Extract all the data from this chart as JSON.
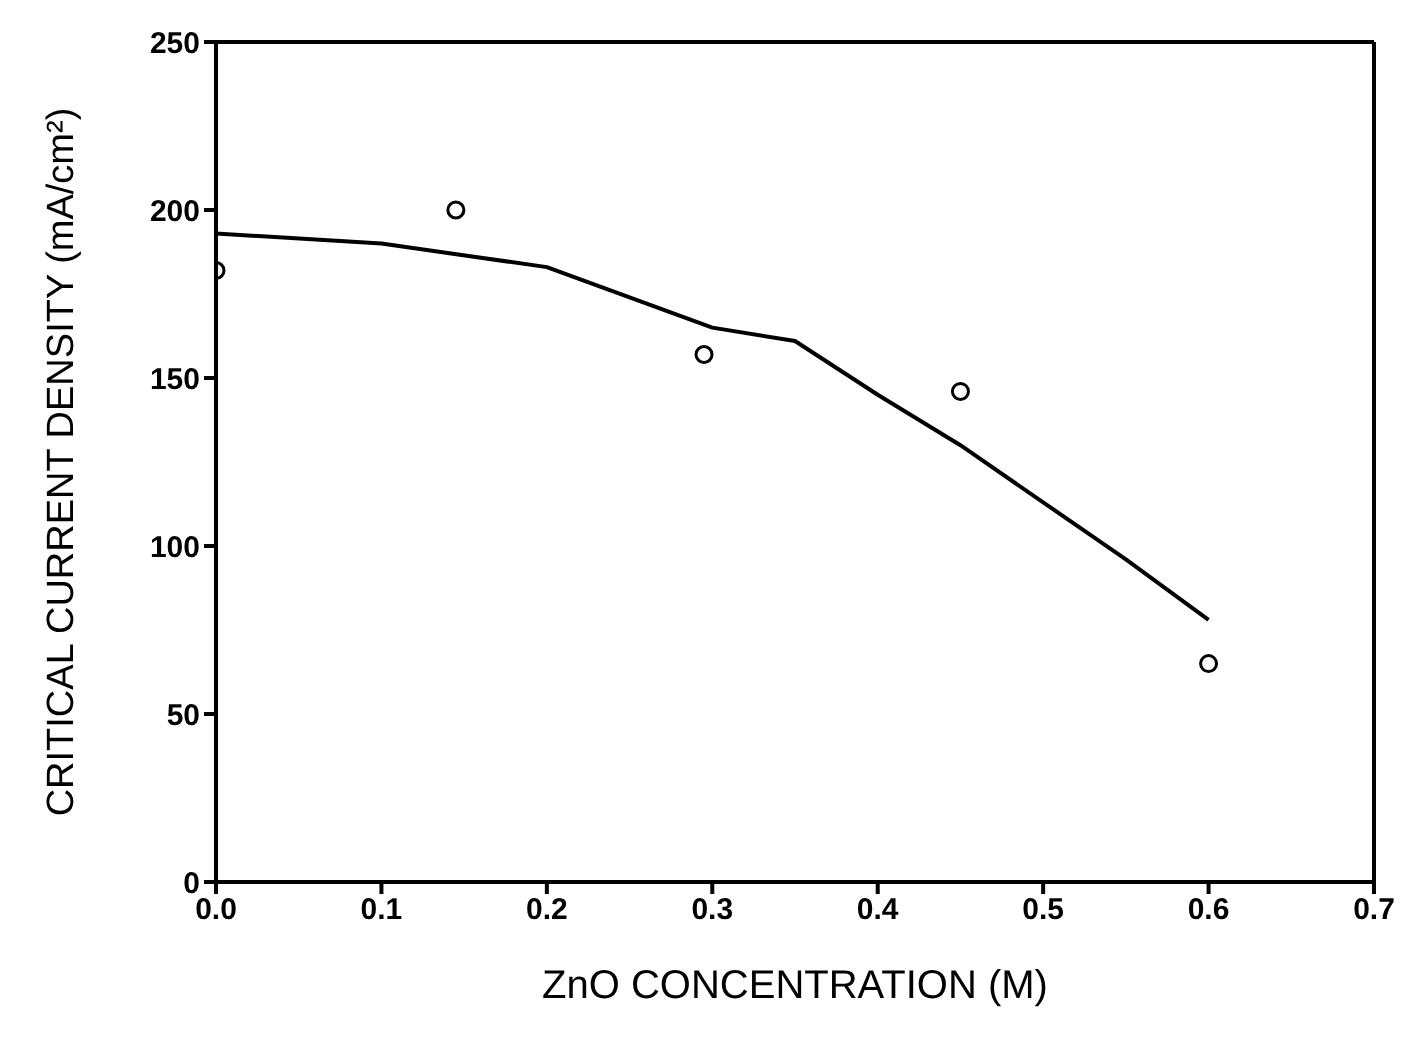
{
  "chart_data": {
    "type": "scatter",
    "xlabel": "ZnO CONCENTRATION (M)",
    "ylabel": "CRITICAL CURRENT DENSITY (mA/cm²)",
    "xlim": [
      0,
      0.7
    ],
    "xticks": [
      {
        "value": 0,
        "label": "0.0"
      },
      0.1,
      0.2,
      0.3,
      0.4,
      0.5,
      0.6,
      0.7
    ],
    "ylim": [
      0,
      250
    ],
    "yticks": [
      0,
      50,
      100,
      150,
      200,
      250
    ],
    "grid": false,
    "marker": "circle",
    "series": [
      {
        "color": "#000000",
        "x": [
          0,
          0.145,
          0.295,
          0.45,
          0.6
        ],
        "values": [
          182,
          200,
          157,
          146,
          65
        ]
      },
      {
        "type": "line",
        "color": "#000000",
        "marker": "none",
        "line_style": "solid",
        "x": [
          0,
          0.1,
          0.2,
          0.3,
          0.35,
          0.4,
          0.45,
          0.5,
          0.55,
          0.6
        ],
        "values": [
          193,
          190,
          183,
          165,
          161,
          145,
          130,
          113,
          96,
          78
        ]
      }
    ]
  }
}
